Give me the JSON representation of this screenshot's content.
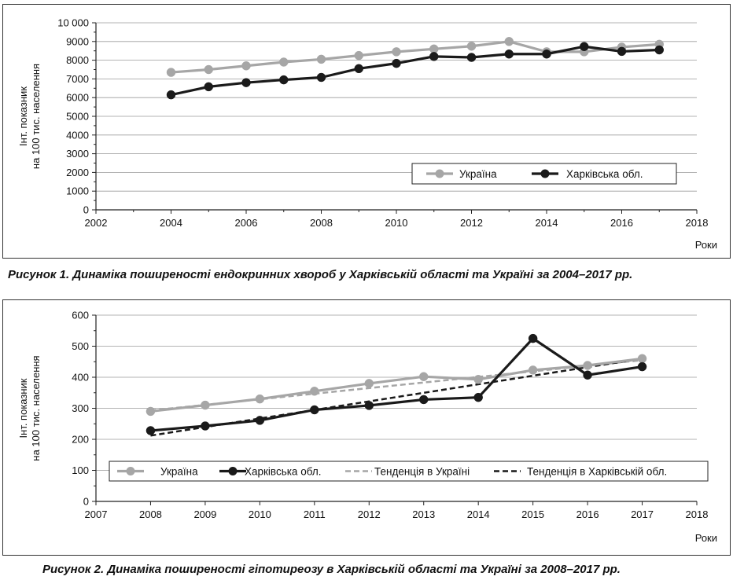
{
  "figures": [
    {
      "caption": "Рисунок 1.  Динаміка поширеності ендокринних хвороб у Харківській області та Україні за 2004–2017 рр."
    },
    {
      "caption": "Рисунок 2.  Динаміка поширеності гіпотиреозу в Харківській області та Україні за 2008–2017 рр."
    }
  ],
  "chart_data": [
    {
      "type": "line",
      "title": "",
      "xlabel": "Роки",
      "ylabel": [
        "Інт. показник",
        "на 100 тис. населення"
      ],
      "xlim": [
        2002,
        2018
      ],
      "ylim": [
        0,
        10000
      ],
      "x_ticks": [
        2002,
        2004,
        2006,
        2008,
        2010,
        2012,
        2014,
        2016,
        2018
      ],
      "x_tick_labels": [
        "2002",
        "2004",
        "2006",
        "2008",
        "2010",
        "2012",
        "2014",
        "2016",
        "2018"
      ],
      "y_ticks": [
        0,
        1000,
        2000,
        3000,
        4000,
        5000,
        6000,
        7000,
        8000,
        9000,
        10000
      ],
      "y_tick_labels": [
        "0",
        "1000",
        "2000",
        "3000",
        "4000",
        "5000",
        "6000",
        "7000",
        "8000",
        "9000",
        "10 000"
      ],
      "grid": "horizontal",
      "legend_position": "bottom-right",
      "series": [
        {
          "name": "Україна",
          "color": "#a6a6a6",
          "style": "solid",
          "marker": true,
          "x": [
            2004,
            2005,
            2006,
            2007,
            2008,
            2009,
            2010,
            2011,
            2012,
            2013,
            2014,
            2015,
            2016,
            2017
          ],
          "y": [
            7350,
            7500,
            7700,
            7900,
            8050,
            8250,
            8450,
            8600,
            8750,
            9000,
            8450,
            8450,
            8700,
            8850
          ]
        },
        {
          "name": "Харківська обл.",
          "color": "#1a1a1a",
          "style": "solid",
          "marker": true,
          "x": [
            2004,
            2005,
            2006,
            2007,
            2008,
            2009,
            2010,
            2011,
            2012,
            2013,
            2014,
            2015,
            2016,
            2017
          ],
          "y": [
            6150,
            6580,
            6800,
            6950,
            7080,
            7550,
            7830,
            8200,
            8150,
            8330,
            8330,
            8730,
            8470,
            8550
          ]
        }
      ]
    },
    {
      "type": "line",
      "title": "",
      "xlabel": "Роки",
      "ylabel": [
        "Інт. показник",
        "на 100 тис. населення"
      ],
      "xlim": [
        2007,
        2018
      ],
      "ylim": [
        0,
        600
      ],
      "x_ticks": [
        2007,
        2008,
        2009,
        2010,
        2011,
        2012,
        2013,
        2014,
        2015,
        2016,
        2017,
        2018
      ],
      "x_tick_labels": [
        "2007",
        "2008",
        "2009",
        "2010",
        "2011",
        "2012",
        "2013",
        "2014",
        "2015",
        "2016",
        "2017",
        "2018"
      ],
      "y_ticks": [
        0,
        100,
        200,
        300,
        400,
        500,
        600
      ],
      "y_tick_labels": [
        "0",
        "100",
        "200",
        "300",
        "400",
        "500",
        "600"
      ],
      "grid": "horizontal",
      "legend_position": "bottom",
      "series": [
        {
          "name": "Україна",
          "color": "#a6a6a6",
          "style": "solid",
          "marker": true,
          "x": [
            2008,
            2009,
            2010,
            2011,
            2012,
            2013,
            2014,
            2015,
            2016,
            2017
          ],
          "y": [
            290,
            310,
            330,
            355,
            380,
            402,
            393,
            423,
            438,
            460
          ]
        },
        {
          "name": "Харківська обл.",
          "color": "#1a1a1a",
          "style": "solid",
          "marker": true,
          "x": [
            2008,
            2009,
            2010,
            2011,
            2012,
            2013,
            2014,
            2015,
            2016,
            2017
          ],
          "y": [
            228,
            243,
            261,
            295,
            309,
            328,
            335,
            525,
            407,
            434
          ]
        },
        {
          "name": "Тенденція в Україні",
          "color": "#a6a6a6",
          "style": "dashed",
          "marker": false,
          "x": [
            2008,
            2017
          ],
          "y": [
            293,
            455
          ]
        },
        {
          "name": "Тенденція в Харківській обл.",
          "color": "#1a1a1a",
          "style": "dashed",
          "marker": false,
          "x": [
            2008,
            2017
          ],
          "y": [
            212,
            460
          ]
        }
      ]
    }
  ]
}
